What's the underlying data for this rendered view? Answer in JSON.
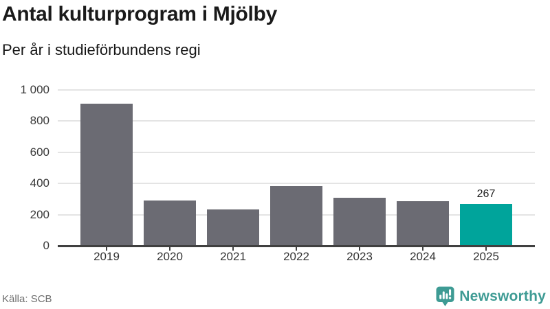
{
  "title": "Antal kulturprogram i Mjölby",
  "subtitle": "Per år i studieförbundens regi",
  "source": "Källa: SCB",
  "brand": {
    "name": "Newsworthy",
    "color": "#3E9B94"
  },
  "colors": {
    "bar": "#6B6B73",
    "highlight": "#00A49B",
    "gridline": "#E4E4E4",
    "axis": "#404040",
    "title_text": "#1A1A1A",
    "source_text": "#6E6E6E"
  },
  "chart_data": {
    "type": "bar",
    "title": "Antal kulturprogram i Mjölby",
    "subtitle": "Per år i studieförbundens regi",
    "categories": [
      "2019",
      "2020",
      "2021",
      "2022",
      "2023",
      "2024",
      "2025"
    ],
    "values": [
      910,
      290,
      235,
      385,
      310,
      285,
      267
    ],
    "highlight_index": 6,
    "data_labels": [
      {
        "index": 6,
        "text": "267"
      }
    ],
    "yticks": [
      {
        "label": "1 000",
        "value": 1000
      },
      {
        "label": "800",
        "value": 800
      },
      {
        "label": "600",
        "value": 600
      },
      {
        "label": "400",
        "value": 400
      },
      {
        "label": "200",
        "value": 200
      },
      {
        "label": "0",
        "value": 0
      }
    ],
    "ylim": [
      0,
      1000
    ],
    "grid": true,
    "legend": false,
    "xlabel": "",
    "ylabel": ""
  }
}
